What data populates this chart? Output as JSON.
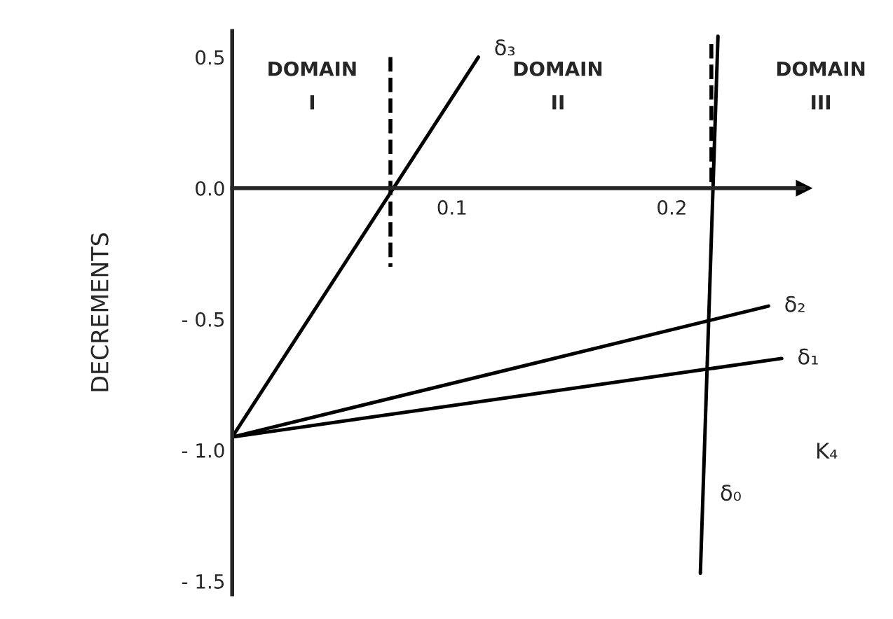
{
  "chart_data": {
    "type": "line",
    "xlabel": "K₄",
    "ylabel": "DECREMENTS",
    "xlim": [
      0,
      0.26
    ],
    "ylim": [
      -1.55,
      0.6
    ],
    "xticks": [
      0.1,
      0.2
    ],
    "yticks": [
      {
        "value": 0.5,
        "label": "0.5"
      },
      {
        "value": 0.0,
        "label": "0.0"
      },
      {
        "value": -0.5,
        "label": "- 0.5"
      },
      {
        "value": -1.0,
        "label": "- 1.0"
      },
      {
        "value": -1.5,
        "label": "- 1.5"
      }
    ],
    "annotations": [
      "DOMAIN\nI",
      "DOMAIN\nII",
      "DOMAIN\nIII"
    ],
    "series": [
      {
        "name": "δ₃",
        "color": "#000000",
        "x": [
          0,
          0.112
        ],
        "values": [
          -0.95,
          0.5
        ]
      },
      {
        "name": "δ₂",
        "color": "#000000",
        "x": [
          0,
          0.244
        ],
        "values": [
          -0.95,
          -0.45
        ]
      },
      {
        "name": "δ₁",
        "color": "#000000",
        "x": [
          0,
          0.25
        ],
        "values": [
          -0.95,
          -0.65
        ]
      },
      {
        "name": "δ₀",
        "color": "#000000",
        "x": [
          0.221,
          0.213
        ],
        "values": [
          0.58,
          -1.47
        ]
      },
      {
        "color": "#000000",
        "x": [
          0.072,
          0.072
        ],
        "values": [
          0.5,
          -0.3
        ],
        "line_style": "dashed"
      },
      {
        "color": "#000000",
        "x": [
          0.218,
          0.218
        ],
        "values": [
          0.55,
          0.0
        ],
        "line_style": "dashed"
      }
    ],
    "grid": false,
    "legend": false
  }
}
